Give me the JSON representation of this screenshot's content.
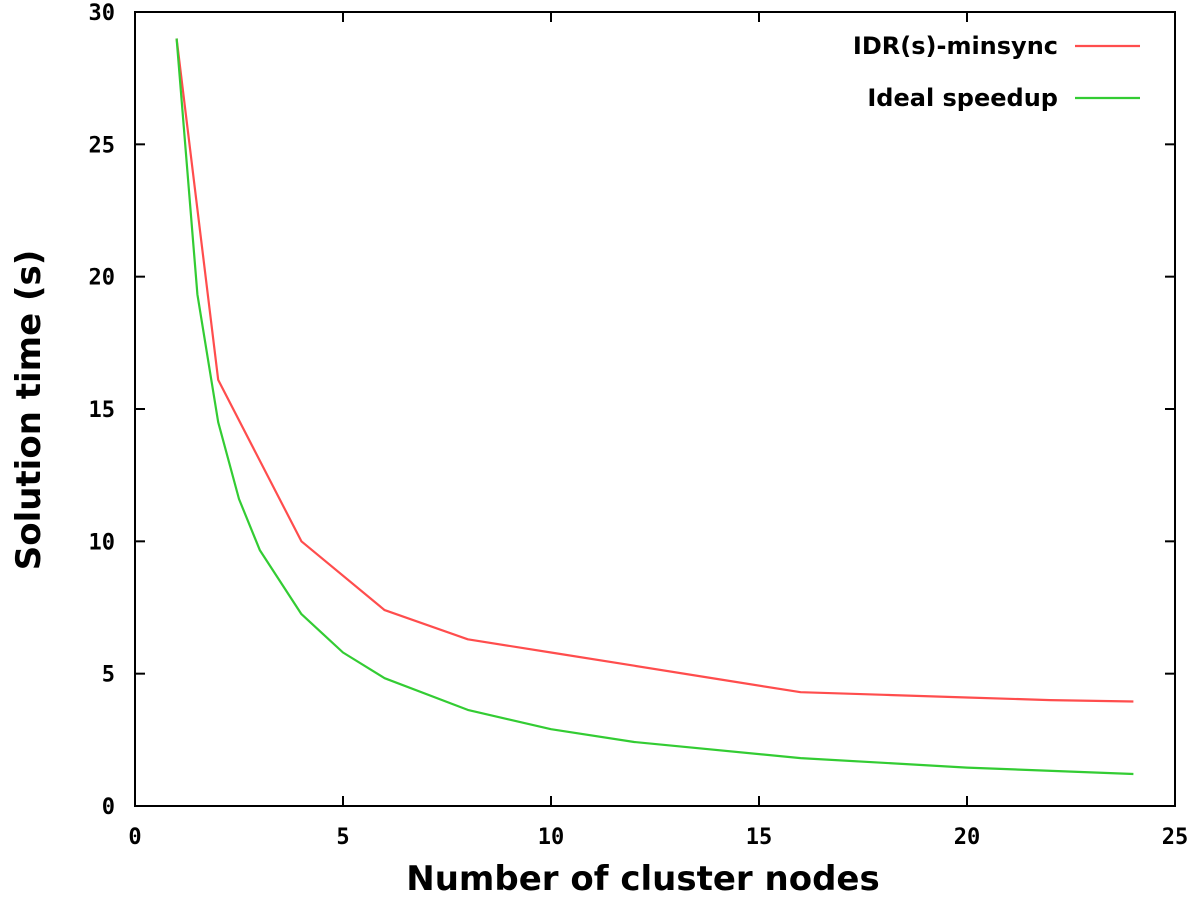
{
  "chart_data": {
    "type": "line",
    "xlabel": "Number of cluster nodes",
    "ylabel": "Solution time (s)",
    "xlim": [
      0,
      25
    ],
    "ylim": [
      0,
      30
    ],
    "xticks": [
      0,
      5,
      10,
      15,
      20,
      25
    ],
    "yticks": [
      0,
      5,
      10,
      15,
      20,
      25,
      30
    ],
    "grid": false,
    "legend_position": "top-right",
    "series": [
      {
        "name": "IDR(s)-minsync",
        "color": "#ff4d4d",
        "x": [
          1,
          2,
          4,
          6,
          8,
          10,
          12,
          14,
          16,
          18,
          20,
          22,
          24
        ],
        "y": [
          29.0,
          16.1,
          10.0,
          7.4,
          6.3,
          5.8,
          5.3,
          4.8,
          4.3,
          4.2,
          4.1,
          4.0,
          3.95
        ]
      },
      {
        "name": "Ideal speedup",
        "color": "#33cc33",
        "x": [
          1,
          1.5,
          2,
          2.5,
          3,
          4,
          5,
          6,
          8,
          10,
          12,
          16,
          20,
          24
        ],
        "y": [
          29.0,
          19.33,
          14.5,
          11.6,
          9.67,
          7.25,
          5.8,
          4.83,
          3.63,
          2.9,
          2.42,
          1.81,
          1.45,
          1.21
        ]
      }
    ]
  }
}
